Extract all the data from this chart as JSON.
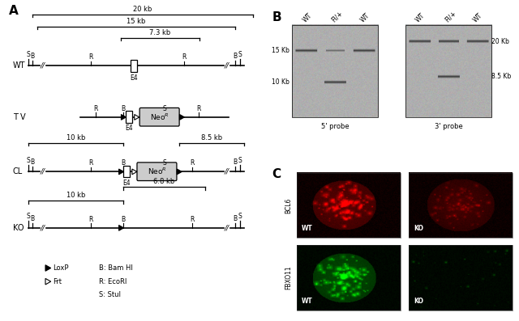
{
  "bg_color": "#ffffff",
  "panel_A_label": "A",
  "panel_B_label": "B",
  "panel_C_label": "C",
  "scale_bars": {
    "20kb": "20 kb",
    "15kb": "15 kb",
    "7_3kb": "7.3 kb",
    "10kb_CL": "10 kb",
    "8_5kb_CL": "8.5 kb",
    "10kb_KO": "10 kb",
    "6_8kb_KO": "6.8 kb"
  },
  "southern_probe_labels": [
    "5' probe",
    "3' probe"
  ],
  "southern_lane_labels": [
    "WT",
    "Fl/+",
    "WT"
  ],
  "IF_row_labels": [
    "BCL6",
    "FBXO11"
  ],
  "IF_col_labels": [
    "WT",
    "KO"
  ],
  "colors": {
    "black": "#000000",
    "white": "#ffffff",
    "gray_neo": "#c0c0c0",
    "blot_bg": "#b8b8b8"
  }
}
